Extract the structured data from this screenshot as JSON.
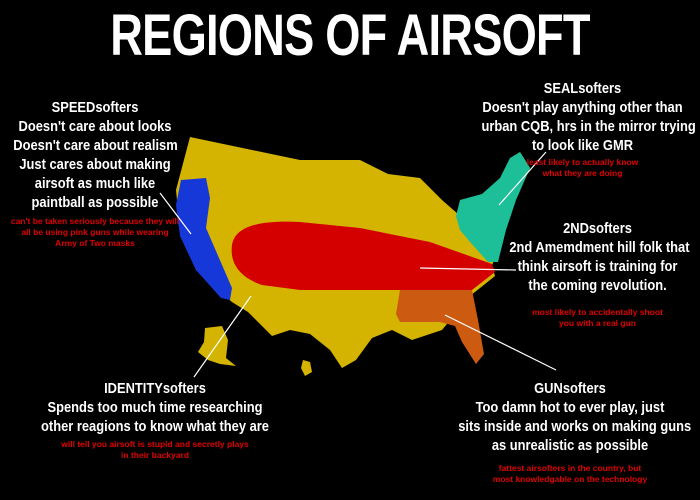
{
  "title": "REGIONS OF AIRSOFT",
  "regions": {
    "speed": {
      "lines": [
        "SPEEDsofters",
        "Doesn't care about looks",
        "Doesn't care about realism",
        "Just cares about making",
        "airsoft as much like",
        "paintball as possible"
      ],
      "note": [
        "can't be taken seriously because they will",
        "all be using pink guns while wearing",
        "Army of Two masks"
      ],
      "color": "#1638d8"
    },
    "seal": {
      "lines": [
        "SEALsofters",
        "Doesn't play anything other than",
        "urban CQB, hrs in the mirror trying",
        "to look like GMR"
      ],
      "note": [
        "least likely to actually know",
        "what they are doing"
      ],
      "color": "#1dbf98"
    },
    "second": {
      "lines": [
        "2NDsofters",
        "2nd Amemdment hill folk that",
        "think airsoft is training for",
        "the coming revolution."
      ],
      "note": [
        "most likely to accidentally shoot",
        "you with a real gun"
      ],
      "color": "#d40000"
    },
    "identity": {
      "lines": [
        "IDENTITYsofters",
        "Spends too much time researching",
        "other reagions to know what they are"
      ],
      "note": [
        "will tell you airsoft is stupid and secretly plays",
        "in their backyard"
      ],
      "color": "#d4b400"
    },
    "gun": {
      "lines": [
        "GUNsofters",
        "Too damn hot to ever play, just",
        "sits inside and works on making guns",
        "as unrealistic as possible"
      ],
      "note": [
        "fattest airsofters in the country, but",
        "most knowledgable on the technology"
      ],
      "color": "#cc5a10"
    }
  }
}
